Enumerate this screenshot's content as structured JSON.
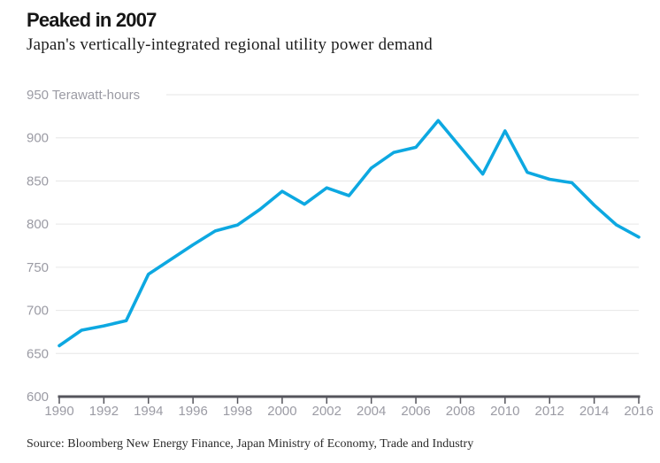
{
  "header": {
    "title": "Peaked in 2007",
    "subtitle": "Japan's vertically-integrated regional utility power demand"
  },
  "chart_data": {
    "type": "line",
    "title": "Peaked in 2007",
    "subtitle": "Japan's vertically-integrated regional utility power demand",
    "unit_label": "Terawatt-hours",
    "x": [
      1990,
      1991,
      1992,
      1993,
      1994,
      1995,
      1996,
      1997,
      1998,
      1999,
      2000,
      2001,
      2002,
      2003,
      2004,
      2005,
      2006,
      2007,
      2008,
      2009,
      2010,
      2011,
      2012,
      2013,
      2014,
      2015,
      2016
    ],
    "series": [
      {
        "name": "Japan regional utility power demand (TWh)",
        "values": [
          659,
          677,
          682,
          688,
          742,
          759,
          776,
          792,
          799,
          817,
          838,
          823,
          842,
          833,
          865,
          883,
          889,
          920,
          889,
          858,
          908,
          860,
          852,
          848,
          822,
          799,
          785
        ]
      }
    ],
    "ylim": [
      600,
      950
    ],
    "yticks": [
      600,
      650,
      700,
      750,
      800,
      850,
      900,
      950
    ],
    "xticks": [
      1990,
      1992,
      1994,
      1996,
      1998,
      2000,
      2002,
      2004,
      2006,
      2008,
      2010,
      2012,
      2014,
      2016
    ],
    "grid": true,
    "legend": "none",
    "line_color": "#0da8e1",
    "axis_color": "#55555c",
    "grid_color": "#e6e6e6",
    "tick_label_color": "#9b9ba4"
  },
  "footer": {
    "source": "Source: Bloomberg New Energy Finance, Japan Ministry of Economy, Trade and Industry"
  }
}
